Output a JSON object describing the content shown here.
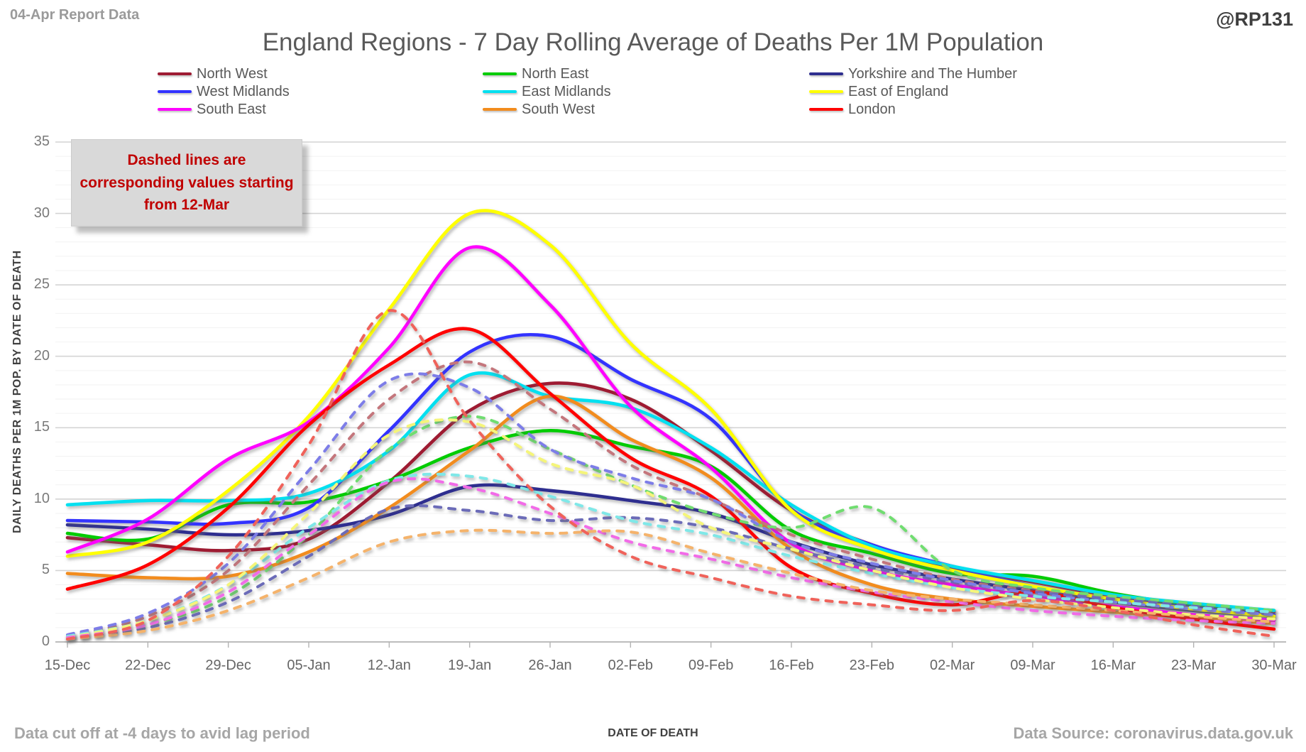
{
  "header": {
    "report_label": "04-Apr Report Data",
    "handle": "@RP131",
    "title": "England Regions - 7 Day Rolling Average of Deaths Per 1M Population"
  },
  "annotation": {
    "text": "Dashed lines are corresponding values starting from 12-Mar"
  },
  "axes": {
    "ylabel": "DAILY DEATHS PER 1M POP. BY DATE OF DEATH",
    "xlabel": "DATE OF DEATH",
    "y_ticks": [
      35,
      30,
      25,
      20,
      15,
      10,
      5,
      0
    ]
  },
  "legend": {
    "columns": [
      [
        {
          "label": "North West",
          "color": "#9E1B32"
        },
        {
          "label": "West Midlands",
          "color": "#3333FF"
        },
        {
          "label": "South East",
          "color": "#FF00FF"
        }
      ],
      [
        {
          "label": "North East",
          "color": "#00CC00"
        },
        {
          "label": "East Midlands",
          "color": "#00E0F0"
        },
        {
          "label": "South West",
          "color": "#F28C1E"
        }
      ],
      [
        {
          "label": "Yorkshire and The Humber",
          "color": "#2E2E8F"
        },
        {
          "label": "East of England",
          "color": "#FFFF00"
        },
        {
          "label": "London",
          "color": "#FF0000"
        }
      ]
    ]
  },
  "footer": {
    "left": "Data cut off at -4 days to avid lag period",
    "right": "Data Source: coronavirus.data.gov.uk"
  },
  "chart_data": {
    "type": "line",
    "title": "England Regions - 7 Day Rolling Average of Deaths Per 1M Population",
    "xlabel": "DATE OF DEATH",
    "ylabel": "DAILY DEATHS PER 1M POP. BY DATE OF DEATH",
    "ylim": [
      0,
      35
    ],
    "grid": "horizontal, minor every 1, major every 5",
    "legend_position": "top",
    "categories": [
      "15-Dec",
      "22-Dec",
      "29-Dec",
      "05-Jan",
      "12-Jan",
      "19-Jan",
      "26-Jan",
      "02-Feb",
      "09-Feb",
      "16-Feb",
      "23-Feb",
      "02-Mar",
      "09-Mar",
      "16-Mar",
      "23-Mar",
      "30-Mar"
    ],
    "series": [
      {
        "name": "North West",
        "color": "#9E1B32",
        "dash": false,
        "values": [
          7.3,
          6.8,
          6.4,
          7.2,
          11.2,
          16.2,
          18.1,
          17.0,
          13.4,
          9.2,
          6.8,
          5.2,
          4.2,
          3.2,
          2.5,
          2.1
        ]
      },
      {
        "name": "North East",
        "color": "#00CC00",
        "dash": false,
        "values": [
          7.6,
          7.2,
          9.6,
          9.8,
          11.3,
          13.6,
          14.8,
          13.7,
          12.3,
          7.8,
          6.2,
          4.8,
          4.6,
          3.4,
          2.6,
          2.2
        ]
      },
      {
        "name": "Yorkshire and The Humber",
        "color": "#2E2E8F",
        "dash": false,
        "values": [
          8.2,
          7.9,
          7.5,
          7.8,
          8.9,
          10.9,
          10.6,
          9.9,
          9.0,
          7.0,
          5.4,
          4.4,
          3.6,
          2.8,
          2.2,
          1.8
        ]
      },
      {
        "name": "West Midlands",
        "color": "#3333FF",
        "dash": false,
        "values": [
          8.5,
          8.4,
          8.3,
          9.4,
          14.8,
          20.3,
          21.4,
          18.4,
          15.6,
          9.3,
          6.8,
          5.3,
          3.9,
          3.0,
          2.4,
          1.9
        ]
      },
      {
        "name": "East Midlands",
        "color": "#00E0F0",
        "dash": false,
        "values": [
          9.6,
          9.9,
          9.9,
          10.4,
          13.4,
          18.7,
          17.2,
          16.4,
          13.6,
          9.6,
          6.7,
          5.3,
          4.3,
          3.3,
          2.7,
          2.2
        ]
      },
      {
        "name": "East of England",
        "color": "#FFFF00",
        "dash": false,
        "values": [
          6.0,
          7.0,
          10.6,
          15.8,
          23.3,
          30.0,
          27.8,
          20.9,
          16.3,
          9.2,
          6.5,
          5.0,
          3.9,
          3.0,
          2.3,
          1.8
        ]
      },
      {
        "name": "South East",
        "color": "#FF00FF",
        "dash": false,
        "values": [
          6.3,
          8.6,
          12.8,
          15.4,
          20.6,
          27.6,
          23.6,
          16.5,
          12.2,
          6.9,
          5.0,
          4.0,
          3.2,
          2.5,
          1.9,
          1.5
        ]
      },
      {
        "name": "South West",
        "color": "#F28C1E",
        "dash": false,
        "values": [
          4.8,
          4.5,
          4.6,
          6.3,
          9.4,
          13.4,
          17.2,
          14.2,
          11.5,
          6.5,
          4.0,
          3.0,
          2.5,
          2.1,
          1.7,
          1.3
        ]
      },
      {
        "name": "London",
        "color": "#FF0000",
        "dash": false,
        "values": [
          3.7,
          5.4,
          9.4,
          15.2,
          19.4,
          21.9,
          17.4,
          12.9,
          10.2,
          5.2,
          3.4,
          2.6,
          3.5,
          2.4,
          1.6,
          0.9
        ]
      },
      {
        "name": "North West (from 12-Mar)",
        "color": "#C4767C",
        "dash": true,
        "values": [
          0.4,
          1.8,
          5.0,
          11.0,
          17.0,
          19.6,
          16.3,
          12.4,
          10.0,
          7.5,
          5.8,
          4.4,
          3.6,
          3.1,
          2.5,
          2.0
        ]
      },
      {
        "name": "North East (from 12-Mar)",
        "color": "#70DD70",
        "dash": true,
        "values": [
          0.3,
          1.2,
          3.2,
          7.5,
          13.5,
          15.8,
          13.5,
          11.0,
          9.0,
          8.0,
          9.4,
          5.0,
          3.8,
          3.2,
          2.7,
          2.2
        ]
      },
      {
        "name": "Yorkshire and The Humber (from 12-Mar)",
        "color": "#6B6BB8",
        "dash": true,
        "values": [
          0.3,
          1.0,
          2.8,
          6.0,
          9.3,
          9.2,
          8.5,
          8.7,
          8.0,
          6.5,
          5.2,
          4.2,
          3.5,
          3.0,
          2.5,
          1.9
        ]
      },
      {
        "name": "West Midlands (from 12-Mar)",
        "color": "#7D7DE8",
        "dash": true,
        "values": [
          0.5,
          2.0,
          5.5,
          12.0,
          18.3,
          17.8,
          13.5,
          11.5,
          10.0,
          7.0,
          5.5,
          4.3,
          3.4,
          2.8,
          2.3,
          1.9
        ]
      },
      {
        "name": "East Midlands (from 12-Mar)",
        "color": "#7FE8E8",
        "dash": true,
        "values": [
          0.4,
          1.5,
          4.0,
          8.0,
          11.3,
          11.6,
          10.2,
          8.5,
          7.5,
          6.0,
          4.8,
          3.8,
          3.2,
          2.8,
          2.4,
          2.1
        ]
      },
      {
        "name": "East of England (from 12-Mar)",
        "color": "#F5F57A",
        "dash": true,
        "values": [
          0.3,
          1.5,
          4.0,
          9.0,
          14.5,
          15.4,
          12.5,
          11.0,
          8.0,
          6.5,
          5.0,
          3.8,
          3.0,
          2.4,
          1.9,
          1.6
        ]
      },
      {
        "name": "South East (from 12-Mar)",
        "color": "#F26BE8",
        "dash": true,
        "values": [
          0.3,
          1.2,
          3.5,
          7.5,
          11.2,
          10.8,
          9.0,
          7.0,
          5.8,
          4.5,
          3.5,
          2.8,
          2.2,
          1.8,
          1.5,
          1.3
        ]
      },
      {
        "name": "South West (from 12-Mar)",
        "color": "#F5B36B",
        "dash": true,
        "values": [
          0.2,
          0.8,
          2.2,
          4.5,
          7.0,
          7.8,
          7.6,
          7.7,
          6.2,
          4.8,
          3.6,
          3.0,
          2.6,
          2.2,
          1.8,
          1.4
        ]
      },
      {
        "name": "London (from 12-Mar)",
        "color": "#F0625A",
        "dash": true,
        "values": [
          0.2,
          1.5,
          6.0,
          13.8,
          23.2,
          15.5,
          9.5,
          6.0,
          4.5,
          3.2,
          2.6,
          2.2,
          2.9,
          2.2,
          1.2,
          0.4
        ]
      }
    ]
  }
}
